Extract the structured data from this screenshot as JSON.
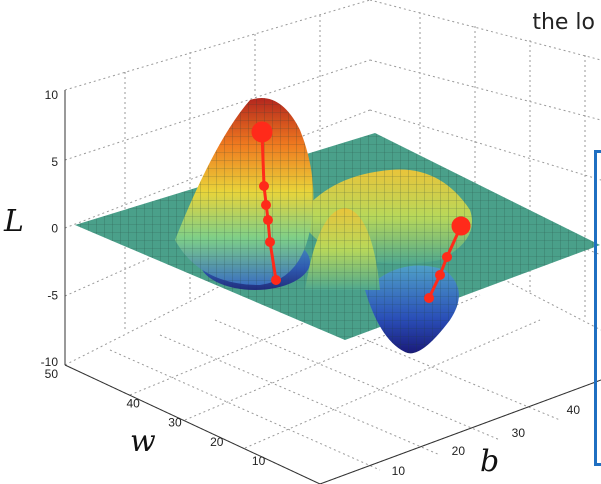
{
  "caption": "the lo",
  "chart_data": {
    "type": "surface",
    "zlabel": "L",
    "ylabel": "w",
    "xlabel": "b",
    "zlim": [
      -10,
      10
    ],
    "z_ticks": [
      "10",
      "5",
      "0",
      "-5",
      "-10"
    ],
    "w_ticks": [
      "50",
      "40",
      "30",
      "20",
      "10"
    ],
    "b_ticks": [
      "10",
      "20",
      "30",
      "40"
    ],
    "peaks": [
      {
        "name": "tall-peak",
        "w": 40,
        "b": 12,
        "height": 8
      },
      {
        "name": "middle-peak",
        "w": 22,
        "b": 22,
        "height": 3
      },
      {
        "name": "right-hump",
        "w": 30,
        "b": 36,
        "height": 2
      }
    ],
    "valleys": [
      {
        "name": "left-valley",
        "w": 27,
        "b": 12,
        "depth": -3
      },
      {
        "name": "right-valley",
        "w": 25,
        "b": 32,
        "depth": -7
      }
    ],
    "descent_paths": [
      {
        "name": "descent-path-left",
        "start": "tall-peak",
        "end": "left-valley",
        "steps": 6,
        "color": "#ff2a1a"
      },
      {
        "name": "descent-path-right",
        "start": "right-hump",
        "end": "right-valley",
        "steps": 4,
        "color": "#ff2a1a"
      }
    ]
  },
  "colors": {
    "accent_path": "#ff2a1a",
    "box_border": "#1f6fc1",
    "plane": "#4aa08a"
  }
}
